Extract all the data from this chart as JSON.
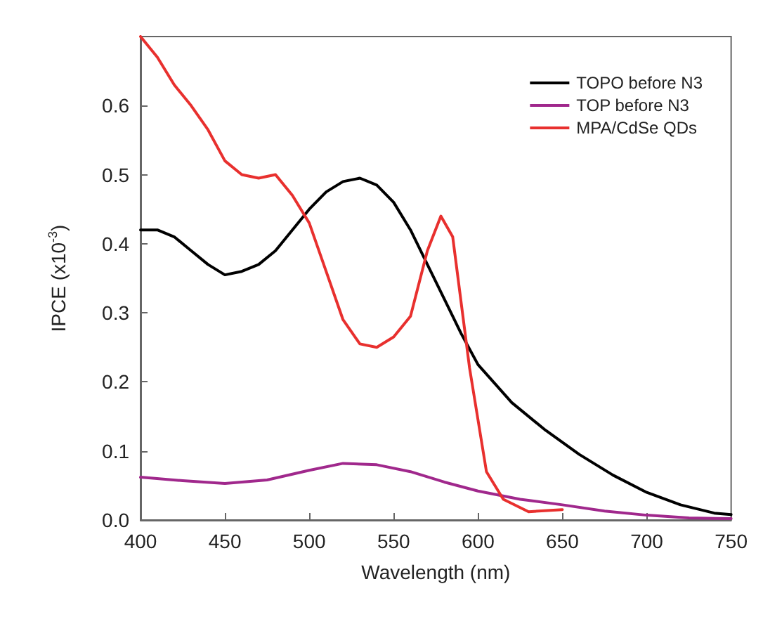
{
  "chart_data": {
    "type": "line",
    "xlabel": "Wavelength (nm)",
    "ylabel": "IPCE (x10$^{-3}$)",
    "xlim": [
      400,
      750
    ],
    "xticks": [
      400,
      450,
      500,
      550,
      600,
      650,
      700,
      750
    ],
    "ylim": [
      0,
      0.7
    ],
    "yticks": [
      {
        "value": 0,
        "label": "0.0"
      },
      0.1,
      0.2,
      0.3,
      0.4,
      0.5,
      0.6
    ],
    "grid": false,
    "legend": "top right",
    "marker": "none",
    "line_style": "solid",
    "series": [
      {
        "name": "TOPO before N3",
        "color": "#000000",
        "x": [
          400,
          410,
          420,
          430,
          440,
          450,
          460,
          470,
          480,
          490,
          500,
          510,
          520,
          530,
          540,
          550,
          560,
          570,
          580,
          590,
          600,
          620,
          640,
          660,
          680,
          700,
          720,
          740,
          750
        ],
        "values": [
          0.42,
          0.42,
          0.41,
          0.39,
          0.37,
          0.355,
          0.36,
          0.37,
          0.39,
          0.42,
          0.45,
          0.475,
          0.49,
          0.495,
          0.485,
          0.46,
          0.42,
          0.37,
          0.32,
          0.27,
          0.225,
          0.17,
          0.13,
          0.095,
          0.065,
          0.04,
          0.022,
          0.01,
          0.008
        ]
      },
      {
        "name": "TOP before N3",
        "color": "#a0288c",
        "x": [
          400,
          425,
          450,
          475,
          500,
          520,
          540,
          560,
          580,
          600,
          625,
          650,
          675,
          700,
          725,
          750
        ],
        "values": [
          0.062,
          0.057,
          0.053,
          0.058,
          0.072,
          0.082,
          0.08,
          0.07,
          0.055,
          0.042,
          0.03,
          0.022,
          0.013,
          0.007,
          0.003,
          0.002
        ]
      },
      {
        "name": "MPA/CdSe QDs",
        "color": "#e8302e",
        "x": [
          400,
          410,
          420,
          430,
          440,
          450,
          460,
          470,
          480,
          490,
          500,
          510,
          520,
          530,
          540,
          550,
          560,
          570,
          578,
          585,
          595,
          605,
          615,
          630,
          650
        ],
        "values": [
          0.7,
          0.67,
          0.63,
          0.6,
          0.565,
          0.52,
          0.5,
          0.495,
          0.5,
          0.47,
          0.43,
          0.36,
          0.29,
          0.255,
          0.25,
          0.265,
          0.295,
          0.39,
          0.44,
          0.41,
          0.22,
          0.07,
          0.03,
          0.012,
          0.015
        ]
      }
    ]
  }
}
